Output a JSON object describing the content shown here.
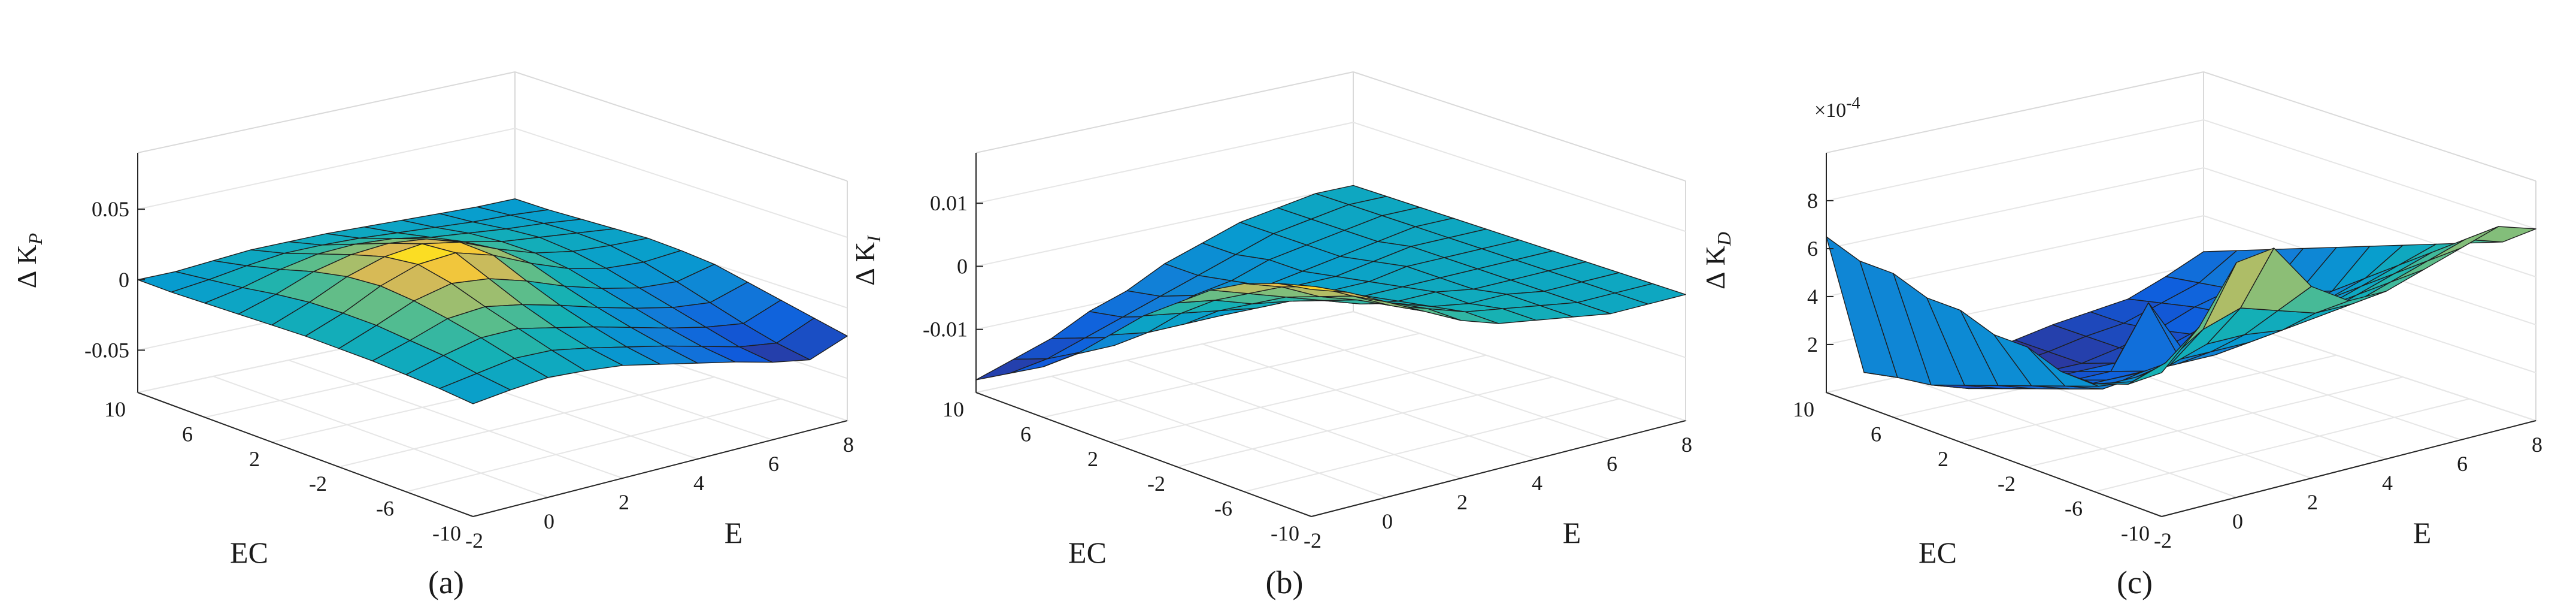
{
  "figure": {
    "panels": [
      {
        "caption": "(a)",
        "zlabel": {
          "delta": "Δ",
          "main": "K",
          "sub": "P"
        },
        "xlabel": "E",
        "ylabel": "EC",
        "exponent": null,
        "zticks": [
          "0.05",
          "0",
          "-0.05"
        ],
        "xticks": [
          "-2",
          "0",
          "2",
          "4",
          "6",
          "8"
        ],
        "yticks": [
          "10",
          "6",
          "2",
          "-2",
          "-6",
          "-10"
        ]
      },
      {
        "caption": "(b)",
        "zlabel": {
          "delta": "Δ",
          "main": "K",
          "sub": "I"
        },
        "xlabel": "E",
        "ylabel": "EC",
        "exponent": null,
        "zticks": [
          "0.01",
          "0",
          "-0.01"
        ],
        "xticks": [
          "-2",
          "0",
          "2",
          "4",
          "6",
          "8"
        ],
        "yticks": [
          "10",
          "6",
          "2",
          "-2",
          "-6",
          "-10"
        ]
      },
      {
        "caption": "(c)",
        "zlabel": {
          "delta": "Δ",
          "main": "K",
          "sub": "D"
        },
        "xlabel": "E",
        "ylabel": "EC",
        "exponent": {
          "base": "×10",
          "power": "-4"
        },
        "zticks": [
          "8",
          "6",
          "4",
          "2"
        ],
        "xticks": [
          "-2",
          "0",
          "2",
          "4",
          "6",
          "8"
        ],
        "yticks": [
          "10",
          "6",
          "2",
          "-2",
          "-6",
          "-10"
        ]
      }
    ]
  },
  "chart_data": [
    {
      "type": "surface",
      "title": "",
      "xlabel": "E",
      "ylabel": "EC",
      "zlabel": "ΔK_P",
      "xlim": [
        -2,
        8
      ],
      "ylim": [
        -10,
        10
      ],
      "zlim": [
        -0.08,
        0.09
      ],
      "zticks": [
        -0.05,
        0,
        0.05
      ],
      "colormap": "parula",
      "x": [
        -2,
        -1,
        0,
        1,
        2,
        3,
        4,
        5,
        6,
        7,
        8
      ],
      "y": [
        -10,
        -8,
        -6,
        -4,
        -2,
        0,
        2,
        4,
        6,
        8,
        10
      ],
      "z_summary": "surface oscillating near 0 with peak about 0.04 near E=2..4, EC=0 and dips to about -0.03 near E=6..8, EC=-6..-10",
      "z": [
        [
          0.0,
          0.003,
          0.005,
          0.003,
          0.0,
          -0.006,
          -0.012,
          -0.018,
          -0.025,
          -0.03,
          -0.02
        ],
        [
          0.002,
          0.006,
          0.01,
          0.009,
          0.004,
          -0.002,
          -0.008,
          -0.015,
          -0.022,
          -0.026,
          -0.015
        ],
        [
          0.003,
          0.01,
          0.016,
          0.016,
          0.01,
          0.004,
          -0.003,
          -0.01,
          -0.016,
          -0.02,
          -0.01
        ],
        [
          0.004,
          0.012,
          0.021,
          0.023,
          0.018,
          0.011,
          0.003,
          -0.004,
          -0.01,
          -0.013,
          -0.005
        ],
        [
          0.004,
          0.014,
          0.025,
          0.031,
          0.028,
          0.02,
          0.01,
          0.002,
          -0.004,
          -0.006,
          0.0
        ],
        [
          0.004,
          0.014,
          0.027,
          0.036,
          0.038,
          0.03,
          0.018,
          0.008,
          0.002,
          0.0,
          0.002
        ],
        [
          0.003,
          0.013,
          0.025,
          0.033,
          0.036,
          0.031,
          0.02,
          0.011,
          0.006,
          0.004,
          0.003
        ],
        [
          0.002,
          0.01,
          0.02,
          0.026,
          0.028,
          0.025,
          0.017,
          0.011,
          0.008,
          0.005,
          0.002
        ],
        [
          0.001,
          0.006,
          0.013,
          0.018,
          0.019,
          0.017,
          0.012,
          0.009,
          0.006,
          0.004,
          0.001
        ],
        [
          0.0,
          0.003,
          0.007,
          0.01,
          0.01,
          0.009,
          0.007,
          0.005,
          0.003,
          0.002,
          0.0
        ],
        [
          0.0,
          0.0,
          0.002,
          0.004,
          0.004,
          0.004,
          0.003,
          0.002,
          0.001,
          0.0,
          0.0
        ]
      ]
    },
    {
      "type": "surface",
      "title": "",
      "xlabel": "E",
      "ylabel": "EC",
      "zlabel": "ΔK_I",
      "xlim": [
        -2,
        8
      ],
      "ylim": [
        -10,
        10
      ],
      "zlim": [
        -0.02,
        0.018
      ],
      "zticks": [
        -0.01,
        0,
        0.01
      ],
      "colormap": "parula",
      "x": [
        -2,
        -1,
        0,
        1,
        2,
        3,
        4,
        5,
        6,
        7,
        8
      ],
      "y": [
        -10,
        -8,
        -6,
        -4,
        -2,
        0,
        2,
        4,
        6,
        8,
        10
      ],
      "z_summary": "saddle-like surface: maximum about 0.016 at E=-2..0, EC=-10 rising toward back; minimum about -0.018 at E=-2, EC=10 front corner; near 0 along E=8 edge",
      "z": [
        [
          0.016,
          0.014,
          0.011,
          0.008,
          0.005,
          0.003,
          0.002,
          0.001,
          0.0,
          0.0,
          0.0
        ],
        [
          0.015,
          0.013,
          0.01,
          0.007,
          0.005,
          0.003,
          0.002,
          0.001,
          0.0,
          0.0,
          0.0
        ],
        [
          0.013,
          0.011,
          0.008,
          0.006,
          0.004,
          0.002,
          0.001,
          0.001,
          0.0,
          0.0,
          0.0
        ],
        [
          0.01,
          0.008,
          0.006,
          0.004,
          0.002,
          0.001,
          0.001,
          0.0,
          0.0,
          0.0,
          0.0
        ],
        [
          0.006,
          0.005,
          0.003,
          0.002,
          0.001,
          0.0,
          0.0,
          0.0,
          0.0,
          0.0,
          0.0
        ],
        [
          0.002,
          0.001,
          0.0,
          -0.001,
          -0.001,
          -0.001,
          -0.001,
          0.0,
          0.0,
          0.0,
          0.0
        ],
        [
          -0.003,
          -0.004,
          -0.004,
          -0.004,
          -0.003,
          -0.002,
          -0.002,
          -0.001,
          0.0,
          0.0,
          0.0
        ],
        [
          -0.008,
          -0.008,
          -0.007,
          -0.006,
          -0.005,
          -0.004,
          -0.003,
          -0.002,
          -0.001,
          0.0,
          0.0
        ],
        [
          -0.012,
          -0.011,
          -0.01,
          -0.008,
          -0.006,
          -0.005,
          -0.003,
          -0.002,
          -0.001,
          0.0,
          0.0
        ],
        [
          -0.015,
          -0.014,
          -0.012,
          -0.01,
          -0.008,
          -0.006,
          -0.004,
          -0.002,
          -0.001,
          0.0,
          0.0
        ],
        [
          -0.018,
          -0.016,
          -0.014,
          -0.011,
          -0.009,
          -0.006,
          -0.004,
          -0.002,
          -0.001,
          0.0,
          0.0
        ]
      ]
    },
    {
      "type": "surface",
      "title": "",
      "xlabel": "E",
      "ylabel": "EC",
      "zlabel": "ΔK_D",
      "z_exponent": -4,
      "xlim": [
        -2,
        8
      ],
      "ylim": [
        -10,
        10
      ],
      "zlim": [
        0,
        10
      ],
      "zticks": [
        2,
        4,
        6,
        8
      ],
      "colormap": "parula",
      "x": [
        -2,
        -1,
        0,
        1,
        2,
        3,
        4,
        5,
        6,
        7,
        8
      ],
      "y": [
        -10,
        -8,
        -6,
        -4,
        -2,
        0,
        2,
        4,
        6,
        8,
        10
      ],
      "z_summary": "values in units of 1e-4: bowl shaped surface, high edges (about 6 to 10) at back-right with a spike near E=0, EC=-10; low trough (about 0 to 1) near E=-2..2, EC=6..10; small spike about 4 near E=3, EC=2",
      "z": [
        [
          6.0,
          7.5,
          9.8,
          10.0,
          8.0,
          7.0,
          7.0,
          7.5,
          8.0,
          8.5,
          8.0
        ],
        [
          5.0,
          5.5,
          6.5,
          7.0,
          6.5,
          6.0,
          6.0,
          6.5,
          7.0,
          7.5,
          7.0
        ],
        [
          4.5,
          4.2,
          4.5,
          5.0,
          5.0,
          4.8,
          5.0,
          5.5,
          6.0,
          6.5,
          6.5
        ],
        [
          4.5,
          3.5,
          3.5,
          3.8,
          3.8,
          3.8,
          4.0,
          4.5,
          5.0,
          5.5,
          6.0
        ],
        [
          5.0,
          3.0,
          2.5,
          2.8,
          2.8,
          2.8,
          3.0,
          3.5,
          4.0,
          4.5,
          5.5
        ],
        [
          5.0,
          2.5,
          2.0,
          2.0,
          2.0,
          2.0,
          2.2,
          2.5,
          3.0,
          3.5,
          5.0
        ],
        [
          5.5,
          2.0,
          1.5,
          1.5,
          1.5,
          4.0,
          1.5,
          2.0,
          2.5,
          3.0,
          4.5
        ],
        [
          5.5,
          1.5,
          1.0,
          1.0,
          1.0,
          1.0,
          1.0,
          1.5,
          2.0,
          2.5,
          4.0
        ],
        [
          6.0,
          1.0,
          0.5,
          0.5,
          0.5,
          0.5,
          0.8,
          1.2,
          1.8,
          2.2,
          3.5
        ],
        [
          6.0,
          0.8,
          0.2,
          0.2,
          0.3,
          0.5,
          0.8,
          1.0,
          1.5,
          2.0,
          3.0
        ],
        [
          6.5,
          0.5,
          0.0,
          0.0,
          0.2,
          0.5,
          0.8,
          1.0,
          1.2,
          1.8,
          2.5
        ]
      ]
    }
  ]
}
